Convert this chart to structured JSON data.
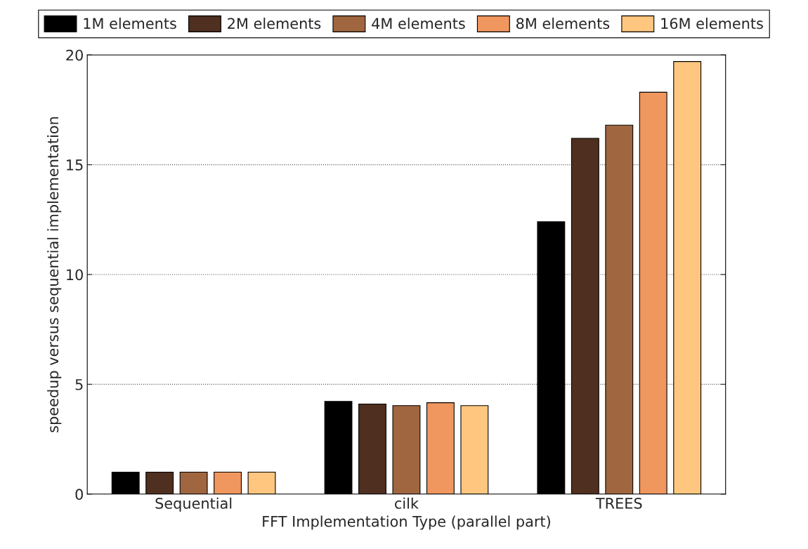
{
  "chart_data": {
    "type": "bar",
    "xlabel": "FFT Implementation Type (parallel part)",
    "ylabel": "speedup versus sequential implementation",
    "categories": [
      "Sequential",
      "cilk",
      "TREES"
    ],
    "series": [
      {
        "name": "1M elements",
        "color": "#000000",
        "values": [
          1,
          4.22,
          12.4
        ]
      },
      {
        "name": "2M elements",
        "color": "#4f2f1f",
        "values": [
          1,
          4.1,
          16.2
        ]
      },
      {
        "name": "4M elements",
        "color": "#a0663f",
        "values": [
          1,
          4.03,
          16.8
        ]
      },
      {
        "name": "8M elements",
        "color": "#f0975f",
        "values": [
          1,
          4.16,
          18.3
        ]
      },
      {
        "name": "16M elements",
        "color": "#ffc67f",
        "values": [
          1,
          4.03,
          19.7
        ]
      }
    ],
    "ylim": [
      0,
      20
    ],
    "yticks": [
      0,
      5,
      10,
      15,
      20
    ],
    "grid": "y",
    "line_style": "dotted",
    "legend": "top"
  }
}
